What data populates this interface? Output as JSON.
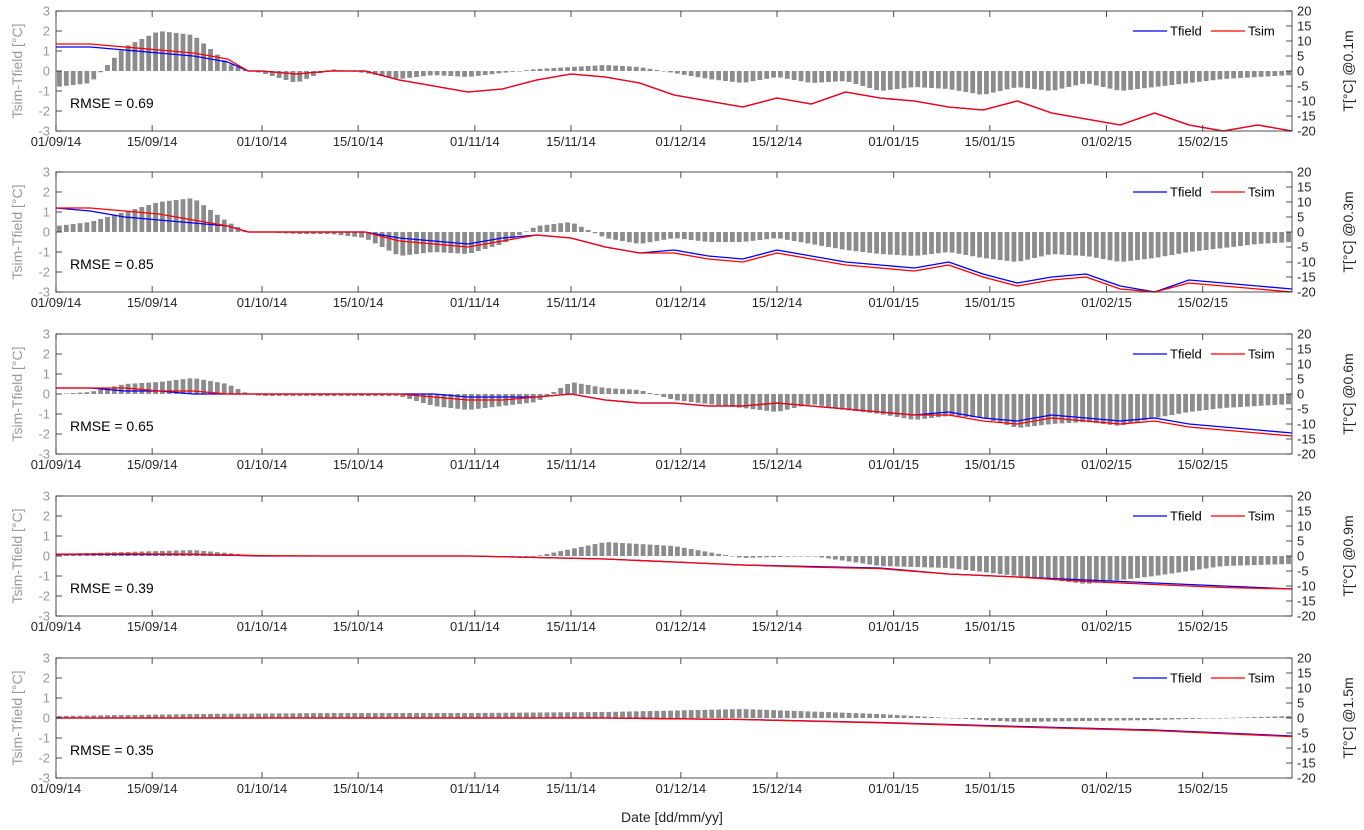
{
  "figure": {
    "xlabel": "Date [dd/mm/yy]",
    "left_ylabel": "Tsim-Tfield [°C]",
    "left_ticks": [
      "3",
      "2",
      "1",
      "0",
      "-1",
      "-2",
      "-3"
    ],
    "right_ticks": [
      "20",
      "15",
      "10",
      "5",
      "0",
      "-5",
      "-10",
      "-15",
      "-20"
    ],
    "x_ticks": [
      "01/09/14",
      "15/09/14",
      "01/10/14",
      "15/10/14",
      "01/11/14",
      "15/11/14",
      "01/12/14",
      "15/12/14",
      "01/01/15",
      "15/01/15",
      "01/02/15",
      "15/02/15"
    ],
    "colors": {
      "Tfield": "#0000ff",
      "Tsim": "#ff0000",
      "bars": "#8c8c8c",
      "axis": "#262626",
      "left_axis_text": "#999999"
    }
  },
  "chart_data": [
    {
      "type": "line",
      "depth_label": "T[°C] @0.1m",
      "rmse": "RMSE = 0.69",
      "legend": [
        "Tfield",
        "Tsim"
      ],
      "legend_position": "top-right",
      "x_unit": "days since 01/09/14",
      "xlim": [
        0,
        180
      ],
      "ylim_left": [
        -3,
        3
      ],
      "ylim_right": [
        -20,
        20
      ],
      "series": [
        {
          "name": "Tfield",
          "axis": "right",
          "x": [
            0,
            5,
            10,
            15,
            20,
            25,
            28,
            30,
            35,
            40,
            45,
            50,
            55,
            60,
            65,
            70,
            75,
            80,
            85,
            90,
            95,
            100,
            105,
            110,
            115,
            120,
            125,
            130,
            135,
            140,
            145,
            150,
            155,
            160,
            165,
            170,
            175,
            180
          ],
          "values": [
            8,
            8,
            7,
            6,
            5,
            3,
            0,
            0,
            -1,
            0,
            0,
            -3,
            -5,
            -7,
            -6,
            -3,
            -1,
            -2,
            -4,
            -8,
            -10,
            -12,
            -9,
            -11,
            -7,
            -9,
            -10,
            -12,
            -13,
            -10,
            -14,
            -16,
            -18,
            -14,
            -18,
            -20,
            -18,
            -20
          ]
        },
        {
          "name": "Tsim",
          "axis": "right",
          "x": [
            0,
            5,
            10,
            15,
            20,
            25,
            28,
            30,
            35,
            40,
            45,
            50,
            55,
            60,
            65,
            70,
            75,
            80,
            85,
            90,
            95,
            100,
            105,
            110,
            115,
            120,
            125,
            130,
            135,
            140,
            145,
            150,
            155,
            160,
            165,
            170,
            175,
            180
          ],
          "values": [
            9,
            9,
            8,
            7,
            6,
            4,
            0,
            0,
            -1,
            0,
            0,
            -3,
            -5,
            -7,
            -6,
            -3,
            -1,
            -2,
            -4,
            -8,
            -10,
            -12,
            -9,
            -11,
            -7,
            -9,
            -10,
            -12,
            -13,
            -10,
            -14,
            -16,
            -18,
            -14,
            -18,
            -20,
            -18,
            -20
          ]
        },
        {
          "name": "Tsim-Tfield",
          "type": "bar",
          "axis": "left",
          "x": [
            0,
            5,
            10,
            15,
            20,
            25,
            28,
            30,
            35,
            40,
            45,
            50,
            55,
            60,
            65,
            70,
            75,
            80,
            85,
            90,
            95,
            100,
            105,
            110,
            115,
            120,
            125,
            130,
            135,
            140,
            145,
            150,
            155,
            160,
            165,
            170,
            175,
            180
          ],
          "values": [
            -0.8,
            -0.6,
            1.2,
            2.0,
            1.8,
            0.4,
            0.0,
            -0.1,
            -0.6,
            0.1,
            -0.1,
            -0.4,
            -0.2,
            -0.3,
            -0.1,
            0.1,
            0.2,
            0.3,
            0.2,
            -0.1,
            -0.4,
            -0.6,
            -0.3,
            -0.6,
            -0.5,
            -1.0,
            -0.8,
            -0.9,
            -1.2,
            -0.8,
            -1.0,
            -0.6,
            -1.0,
            -0.8,
            -0.6,
            -0.4,
            -0.3,
            -0.2
          ]
        }
      ]
    },
    {
      "type": "line",
      "depth_label": "T[°C] @0.3m",
      "rmse": "RMSE = 0.85",
      "legend": [
        "Tfield",
        "Tsim"
      ],
      "legend_position": "top-right",
      "x_unit": "days since 01/09/14",
      "xlim": [
        0,
        180
      ],
      "ylim_left": [
        -3,
        3
      ],
      "ylim_right": [
        -20,
        20
      ],
      "series": [
        {
          "name": "Tfield",
          "axis": "right",
          "x": [
            0,
            5,
            10,
            15,
            20,
            25,
            28,
            30,
            35,
            40,
            45,
            50,
            55,
            60,
            65,
            70,
            75,
            80,
            85,
            90,
            95,
            100,
            105,
            110,
            115,
            120,
            125,
            130,
            135,
            140,
            145,
            150,
            155,
            160,
            165,
            170,
            175,
            180
          ],
          "values": [
            8,
            7,
            5,
            4,
            3,
            2,
            0,
            0,
            0,
            0,
            0,
            -2,
            -3,
            -4,
            -2,
            -1,
            -2,
            -5,
            -7,
            -6,
            -8,
            -9,
            -6,
            -8,
            -10,
            -11,
            -12,
            -10,
            -14,
            -17,
            -15,
            -14,
            -18,
            -20,
            -16,
            -17,
            -18,
            -19
          ]
        },
        {
          "name": "Tsim",
          "axis": "right",
          "x": [
            0,
            5,
            10,
            15,
            20,
            25,
            28,
            30,
            35,
            40,
            45,
            50,
            55,
            60,
            65,
            70,
            75,
            80,
            85,
            90,
            95,
            100,
            105,
            110,
            115,
            120,
            125,
            130,
            135,
            140,
            145,
            150,
            155,
            160,
            165,
            170,
            175,
            180
          ],
          "values": [
            8,
            8,
            7,
            6,
            4,
            2,
            0,
            0,
            0,
            0,
            0,
            -3,
            -4,
            -5,
            -3,
            -1,
            -2,
            -5,
            -7,
            -7,
            -9,
            -10,
            -7,
            -9,
            -11,
            -12,
            -13,
            -11,
            -15,
            -18,
            -16,
            -15,
            -19,
            -20,
            -17,
            -18,
            -19,
            -20
          ]
        },
        {
          "name": "Tsim-Tfield",
          "type": "bar",
          "axis": "left",
          "x": [
            0,
            5,
            10,
            15,
            20,
            25,
            28,
            30,
            35,
            40,
            45,
            50,
            55,
            60,
            65,
            70,
            75,
            80,
            85,
            90,
            95,
            100,
            105,
            110,
            115,
            120,
            125,
            130,
            135,
            140,
            145,
            150,
            155,
            160,
            165,
            170,
            175,
            180
          ],
          "values": [
            0.3,
            0.5,
            1.0,
            1.5,
            1.7,
            0.5,
            0.0,
            0.0,
            -0.1,
            -0.1,
            -0.3,
            -1.2,
            -1.0,
            -1.1,
            -0.6,
            0.3,
            0.5,
            -0.3,
            -0.6,
            -0.3,
            -0.5,
            -0.5,
            -0.3,
            -0.6,
            -0.9,
            -1.1,
            -1.2,
            -1.0,
            -1.3,
            -1.5,
            -1.1,
            -1.2,
            -1.5,
            -1.3,
            -1.0,
            -0.8,
            -0.6,
            -0.5
          ]
        }
      ]
    },
    {
      "type": "line",
      "depth_label": "T[°C] @0.6m",
      "rmse": "RMSE = 0.65",
      "legend": [
        "Tfield",
        "Tsim"
      ],
      "legend_position": "top-right",
      "x_unit": "days since 01/09/14",
      "xlim": [
        0,
        180
      ],
      "ylim_left": [
        -3,
        3
      ],
      "ylim_right": [
        -20,
        20
      ],
      "series": [
        {
          "name": "Tfield",
          "axis": "right",
          "x": [
            0,
            5,
            10,
            15,
            20,
            25,
            28,
            30,
            35,
            40,
            45,
            50,
            55,
            60,
            65,
            70,
            75,
            80,
            85,
            90,
            95,
            100,
            105,
            110,
            115,
            120,
            125,
            130,
            135,
            140,
            145,
            150,
            155,
            160,
            165,
            170,
            175,
            180
          ],
          "values": [
            2,
            2,
            1,
            1,
            0,
            0,
            0,
            0,
            0,
            0,
            0,
            0,
            0,
            -1,
            -1,
            -1,
            0,
            -2,
            -3,
            -3,
            -4,
            -4,
            -3,
            -4,
            -5,
            -6,
            -7,
            -6,
            -8,
            -9,
            -7,
            -8,
            -9,
            -8,
            -10,
            -11,
            -12,
            -13
          ]
        },
        {
          "name": "Tsim",
          "axis": "right",
          "x": [
            0,
            5,
            10,
            15,
            20,
            25,
            28,
            30,
            35,
            40,
            45,
            50,
            55,
            60,
            65,
            70,
            75,
            80,
            85,
            90,
            95,
            100,
            105,
            110,
            115,
            120,
            125,
            130,
            135,
            140,
            145,
            150,
            155,
            160,
            165,
            170,
            175,
            180
          ],
          "values": [
            2,
            2,
            2,
            1,
            1,
            0,
            0,
            0,
            0,
            0,
            0,
            0,
            -1,
            -2,
            -2,
            -1,
            0,
            -2,
            -3,
            -3,
            -4,
            -4,
            -3,
            -4,
            -5,
            -6,
            -7,
            -7,
            -9,
            -10,
            -8,
            -9,
            -10,
            -9,
            -11,
            -12,
            -13,
            -14
          ]
        },
        {
          "name": "Tsim-Tfield",
          "type": "bar",
          "axis": "left",
          "x": [
            0,
            5,
            10,
            15,
            20,
            25,
            28,
            30,
            35,
            40,
            45,
            50,
            55,
            60,
            65,
            70,
            75,
            80,
            85,
            90,
            95,
            100,
            105,
            110,
            115,
            120,
            125,
            130,
            135,
            140,
            145,
            150,
            155,
            160,
            165,
            170,
            175,
            180
          ],
          "values": [
            0.0,
            0.1,
            0.5,
            0.6,
            0.8,
            0.5,
            0.0,
            -0.1,
            -0.1,
            -0.1,
            -0.1,
            -0.1,
            -0.6,
            -0.8,
            -0.6,
            -0.4,
            0.6,
            0.3,
            0.2,
            -0.3,
            -0.5,
            -0.7,
            -0.9,
            -0.5,
            -0.8,
            -1.0,
            -1.3,
            -1.1,
            -1.2,
            -1.7,
            -1.5,
            -1.4,
            -1.6,
            -1.2,
            -0.9,
            -0.7,
            -0.6,
            -0.5
          ]
        }
      ]
    },
    {
      "type": "line",
      "depth_label": "T[°C] @0.9m",
      "rmse": "RMSE = 0.39",
      "legend": [
        "Tfield",
        "Tsim"
      ],
      "legend_position": "top-right",
      "x_unit": "days since 01/09/14",
      "xlim": [
        0,
        180
      ],
      "ylim_left": [
        -3,
        3
      ],
      "ylim_right": [
        -20,
        20
      ],
      "series": [
        {
          "name": "Tfield",
          "axis": "right",
          "x": [
            0,
            10,
            20,
            30,
            40,
            50,
            60,
            70,
            80,
            90,
            100,
            110,
            120,
            130,
            140,
            150,
            160,
            170,
            180
          ],
          "values": [
            0.5,
            0.5,
            0.5,
            0,
            0,
            0,
            0,
            -0.5,
            -1,
            -2,
            -3,
            -3.5,
            -4,
            -6,
            -7,
            -8,
            -9,
            -10,
            -11
          ]
        },
        {
          "name": "Tsim",
          "axis": "right",
          "x": [
            0,
            10,
            20,
            30,
            40,
            50,
            60,
            70,
            80,
            90,
            100,
            110,
            120,
            130,
            140,
            150,
            160,
            170,
            180
          ],
          "values": [
            0.6,
            0.7,
            0.6,
            0.1,
            0,
            0,
            0,
            -0.5,
            -1,
            -2,
            -3,
            -3.7,
            -4.2,
            -6,
            -7,
            -8.5,
            -9.5,
            -10.5,
            -11
          ]
        },
        {
          "name": "Tsim-Tfield",
          "type": "bar",
          "axis": "left",
          "x": [
            0,
            10,
            20,
            30,
            40,
            50,
            60,
            70,
            80,
            90,
            100,
            110,
            120,
            130,
            140,
            150,
            160,
            170,
            180
          ],
          "values": [
            0.1,
            0.2,
            0.3,
            0.0,
            0.0,
            0.0,
            0.0,
            0.0,
            0.7,
            0.5,
            -0.1,
            0.0,
            -0.5,
            -0.6,
            -1.0,
            -1.4,
            -1.0,
            -0.5,
            -0.4
          ]
        }
      ]
    },
    {
      "type": "line",
      "depth_label": "T[°C] @1.5m",
      "rmse": "RMSE = 0.35",
      "legend": [
        "Tfield",
        "Tsim"
      ],
      "legend_position": "top-right",
      "x_unit": "days since 01/09/14",
      "xlim": [
        0,
        180
      ],
      "ylim_left": [
        -3,
        3
      ],
      "ylim_right": [
        -20,
        20
      ],
      "series": [
        {
          "name": "Tfield",
          "axis": "right",
          "x": [
            0,
            20,
            40,
            60,
            80,
            100,
            120,
            140,
            160,
            180
          ],
          "values": [
            0,
            0,
            0,
            0,
            0,
            -0.5,
            -1.5,
            -2.8,
            -4,
            -6
          ]
        },
        {
          "name": "Tsim",
          "axis": "right",
          "x": [
            0,
            20,
            40,
            60,
            80,
            100,
            120,
            140,
            160,
            180
          ],
          "values": [
            0,
            0,
            0,
            0,
            0,
            -0.5,
            -1.6,
            -3,
            -4.2,
            -6.2
          ]
        },
        {
          "name": "Tsim-Tfield",
          "type": "bar",
          "axis": "left",
          "x": [
            0,
            20,
            40,
            60,
            80,
            100,
            120,
            140,
            160,
            180
          ],
          "values": [
            0.1,
            0.2,
            0.25,
            0.25,
            0.3,
            0.45,
            0.2,
            -0.2,
            -0.1,
            0.1
          ]
        }
      ]
    }
  ]
}
